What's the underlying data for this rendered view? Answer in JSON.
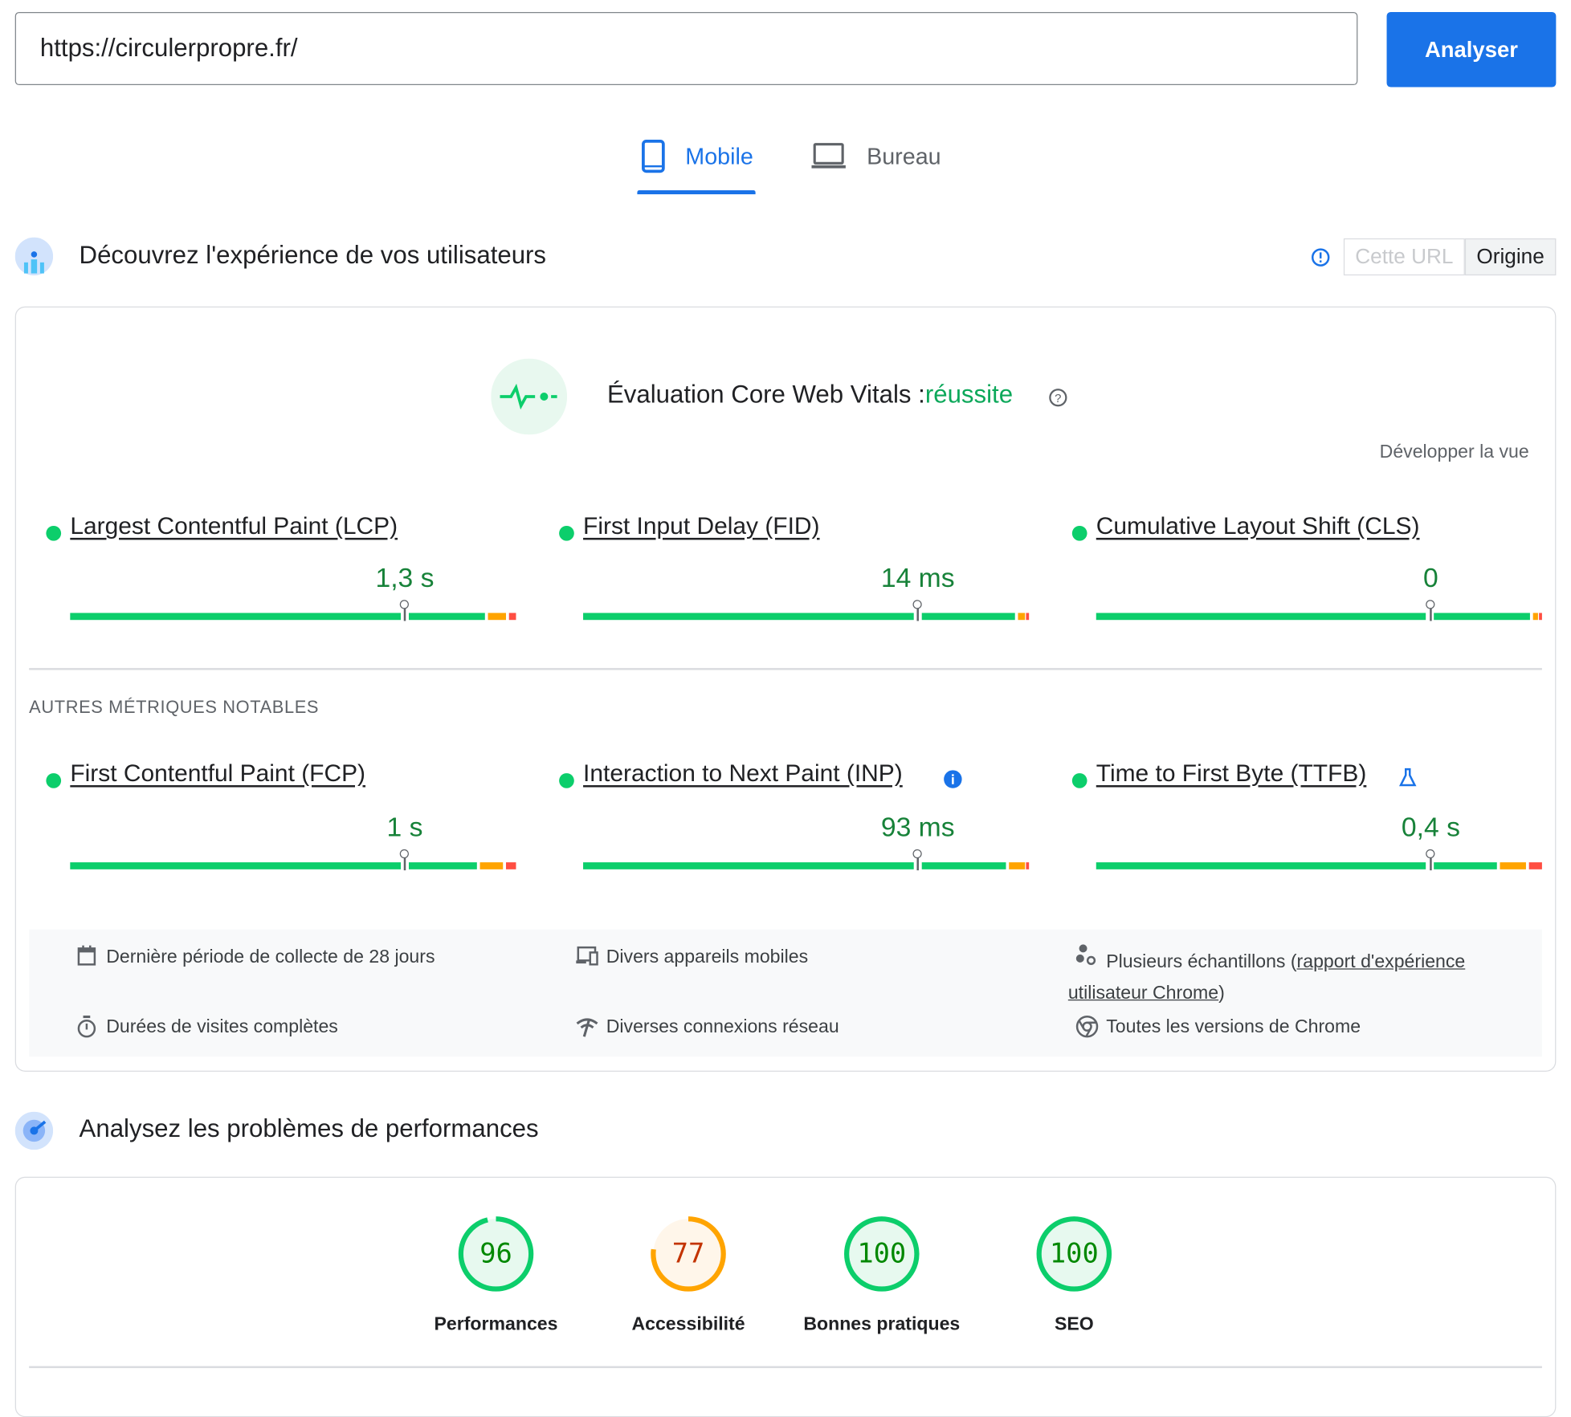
{
  "search": {
    "url": "https://circulerpropre.fr/",
    "analyze_label": "Analyser"
  },
  "tabs": [
    {
      "label": "Mobile",
      "icon": "smartphone-icon",
      "active": true
    },
    {
      "label": "Bureau",
      "icon": "laptop-icon",
      "active": false
    }
  ],
  "field": {
    "title": "Découvrez l'expérience de vos utilisateurs",
    "toggle": [
      "Cette URL",
      "Origine"
    ],
    "cwv_title": "Évaluation Core Web Vitals :",
    "cwv_status": "réussite",
    "expand_label": "Développer la vue",
    "core_metrics": [
      {
        "label": "Largest Contentful Paint (LCP)",
        "value": "1,3 s",
        "status": "good"
      },
      {
        "label": "First Input Delay (FID)",
        "value": "14 ms",
        "status": "good"
      },
      {
        "label": "Cumulative Layout Shift (CLS)",
        "value": "0",
        "status": "good"
      }
    ],
    "other_title": "AUTRES MÉTRIQUES NOTABLES",
    "other_metrics": [
      {
        "label": "First Contentful Paint (FCP)",
        "value": "1 s",
        "status": "good"
      },
      {
        "label": "Interaction to Next Paint (INP)",
        "value": "93 ms",
        "status": "good",
        "icon": "info-icon"
      },
      {
        "label": "Time to First Byte (TTFB)",
        "value": "0,4 s",
        "status": "good",
        "icon": "flask-icon"
      }
    ],
    "footer": {
      "period": "Dernière période de collecte de 28 jours",
      "devices": "Divers appareils mobiles",
      "samples_prefix": "Plusieurs échantillons (",
      "samples_link": "rapport d'expérience utilisateur Chrome",
      "samples_suffix": ")",
      "durations": "Durées de visites complètes",
      "network": "Diverses connexions réseau",
      "chrome": "Toutes les versions de Chrome"
    }
  },
  "lab": {
    "title": "Analysez les problèmes de performances",
    "scores": [
      {
        "label": "Performances",
        "value": "96",
        "score": 96,
        "rating": "good"
      },
      {
        "label": "Accessibilité",
        "value": "77",
        "score": 77,
        "rating": "average"
      },
      {
        "label": "Bonnes pratiques",
        "value": "100",
        "score": 100,
        "rating": "good"
      },
      {
        "label": "SEO",
        "value": "100",
        "score": 100,
        "rating": "good"
      }
    ]
  },
  "colors": {
    "accent": "#1a73e8",
    "good": "#0cce6b",
    "average": "#ffa400",
    "poor": "#ff4e42"
  }
}
